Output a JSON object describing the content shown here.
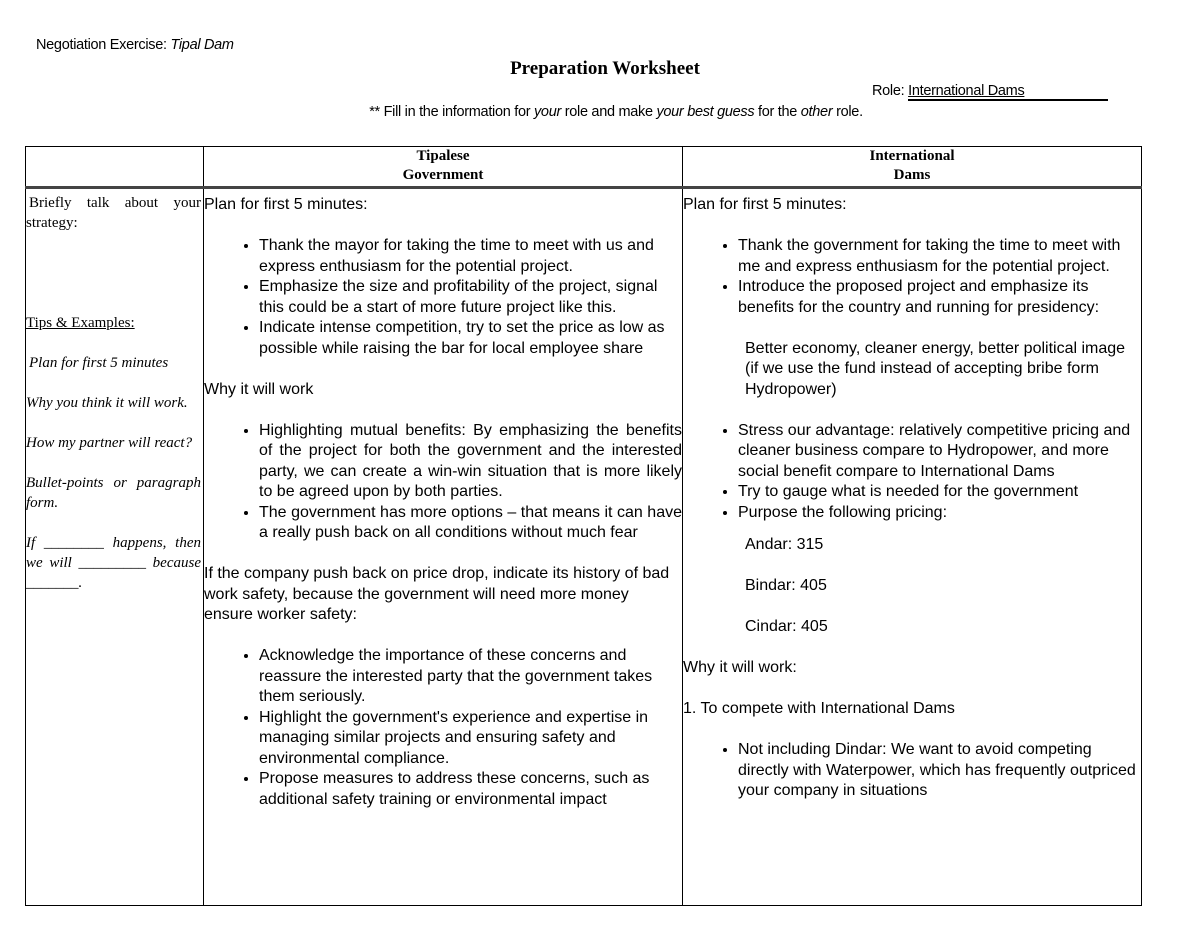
{
  "header": {
    "prefix": "Negotiation Exercise: ",
    "exercise": "Tipal Dam"
  },
  "title": "Preparation Worksheet",
  "role": {
    "label": "Role: ",
    "value": "International Dams"
  },
  "instructions": {
    "p1": "** Fill in the information for ",
    "i1": "your",
    "p2": " role and make ",
    "i2": "your best guess",
    "p3": " for the ",
    "i3": "other",
    "p4": " role."
  },
  "table": {
    "col_headers": [
      {
        "line1": "Tipalese",
        "line2": "Government"
      },
      {
        "line1": "International",
        "line2": "Dams"
      }
    ],
    "side": {
      "prompt": "Briefly talk about your strategy:",
      "tips_heading": "Tips & Examples:",
      "tips": [
        "Plan for first 5 minutes",
        "Why you think it will work.",
        "How my partner will react?",
        "Bullet-points or paragraph form.",
        "If ________ happens, then we will _________ because _______."
      ]
    },
    "government": {
      "plan_heading": "Plan for first 5 minutes:",
      "plan_bullets": [
        "Thank the mayor for taking the time to meet with us and express enthusiasm for the potential project.",
        "Emphasize the size and profitability of the project, signal this could be a start of more future project like this.",
        "Indicate intense competition, try to set the price as low as possible while raising the bar for local employee share"
      ],
      "why_heading": "Why it will work",
      "why_bullets": [
        "Highlighting mutual benefits: By emphasizing the benefits of the project for both the government and the interested party, we can create a win-win situation that is more likely to be agreed upon by both parties.",
        "The government has more options – that means it can have a really push back on all conditions without much fear"
      ],
      "if_paragraph": "If the company push back on price drop, indicate its history of bad work safety, because the government will need more money ensure worker safety:",
      "if_bullets": [
        "Acknowledge the importance of these concerns and reassure the interested party that the government takes them seriously.",
        "Highlight the government's experience and expertise in managing similar projects and ensuring safety and environmental compliance.",
        "Propose measures to address these concerns, such as additional safety training or environmental impact"
      ]
    },
    "dams": {
      "plan_heading": "Plan for first 5 minutes:",
      "plan_bullets": [
        "Thank the government for taking the time to meet with me and express enthusiasm for the potential project.",
        "Introduce the proposed project and emphasize its benefits for the country and running for presidency:"
      ],
      "benefits": "Better economy, cleaner energy, better political image (if we use the fund instead of accepting bribe form Hydropower)",
      "more_bullets": [
        "Stress our advantage: relatively competitive pricing and cleaner business compare to Hydropower, and more social benefit compare to International Dams",
        "Try to gauge what is needed for the government",
        "Purpose the following pricing:"
      ],
      "pricing": [
        "Andar: 315",
        "Bindar: 405",
        "Cindar: 405"
      ],
      "why_heading": "Why it will work:",
      "point1": "1. To compete with International Dams",
      "point1_bullets": [
        "Not including Dindar: We want to avoid competing directly with Waterpower, which has frequently outpriced your company in situations"
      ]
    }
  }
}
